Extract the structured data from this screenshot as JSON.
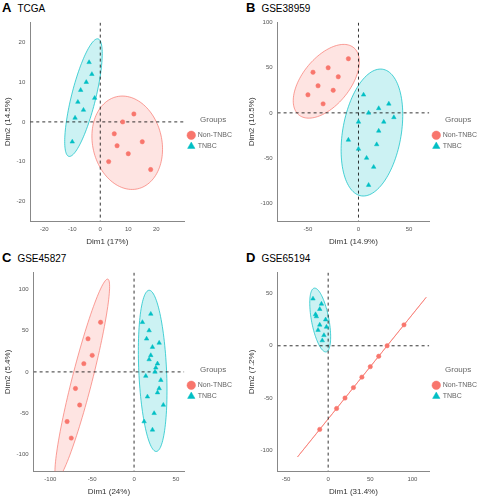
{
  "chart_data": [
    {
      "type": "scatter",
      "panel": "A",
      "title": "TCGA",
      "x_label": "Dim1 (17%)",
      "y_label": "Dim2 (14.5%)",
      "legend_title": "Groups",
      "legend": "right",
      "grid": false,
      "xlim": [
        -25,
        30
      ],
      "xticks": [
        -20,
        -10,
        0,
        10,
        20
      ],
      "ylim": [
        -25,
        25
      ],
      "yticks": [
        -20,
        -10,
        0,
        10,
        20
      ],
      "series": [
        {
          "name": "Non-TNBC",
          "color": "#F8766D",
          "marker": "circle",
          "x": [
            5,
            10,
            15,
            8,
            3,
            12,
            18,
            6
          ],
          "values": [
            -3,
            -8,
            -5,
            0,
            -10,
            2,
            -12,
            -6
          ]
        },
        {
          "name": "TNBC",
          "color": "#00BFC4",
          "marker": "triangle",
          "x": [
            -8,
            -5,
            -6,
            -3,
            -10,
            -2,
            -7,
            -4,
            -9
          ],
          "values": [
            5,
            10,
            3,
            12,
            -5,
            6,
            8,
            15,
            1
          ]
        }
      ]
    },
    {
      "type": "scatter",
      "panel": "B",
      "title": "GSE38959",
      "x_label": "Dim1 (14.9%)",
      "y_label": "Dim2 (10.5%)",
      "legend_title": "Groups",
      "legend": "right",
      "grid": false,
      "xlim": [
        -80,
        70
      ],
      "xticks": [
        -50,
        0,
        50
      ],
      "ylim": [
        -120,
        100
      ],
      "yticks": [
        -100,
        -50,
        0,
        50,
        100
      ],
      "series": [
        {
          "name": "Non-TNBC",
          "color": "#F8766D",
          "marker": "circle",
          "x": [
            -40,
            -30,
            -50,
            -20,
            -35,
            -10,
            -45,
            -25
          ],
          "values": [
            30,
            50,
            20,
            40,
            10,
            60,
            45,
            25
          ]
        },
        {
          "name": "TNBC",
          "color": "#00BFC4",
          "marker": "triangle",
          "x": [
            10,
            20,
            0,
            30,
            15,
            5,
            25,
            -10,
            35,
            20,
            10,
            0,
            18,
            8
          ],
          "values": [
            0,
            -20,
            -40,
            10,
            -60,
            20,
            -10,
            -30,
            -5,
            5,
            -80,
            -10,
            -35,
            -50
          ]
        }
      ]
    },
    {
      "type": "scatter",
      "panel": "C",
      "title": "GSE45827",
      "x_label": "Dim1 (24%)",
      "y_label": "Dim2 (5.4%)",
      "legend_title": "Groups",
      "legend": "right",
      "grid": false,
      "xlim": [
        -120,
        60
      ],
      "xticks": [
        -100,
        -50,
        0,
        50
      ],
      "ylim": [
        -120,
        120
      ],
      "yticks": [
        -100,
        -50,
        0,
        50,
        100
      ],
      "series": [
        {
          "name": "Non-TNBC",
          "color": "#F8766D",
          "marker": "circle",
          "x": [
            -80,
            -70,
            -60,
            -55,
            -50,
            -40,
            -65,
            -75
          ],
          "values": [
            -60,
            -20,
            10,
            40,
            20,
            60,
            -40,
            -80
          ]
        },
        {
          "name": "TNBC",
          "color": "#00BFC4",
          "marker": "triangle",
          "x": [
            10,
            15,
            20,
            25,
            30,
            35,
            12,
            18,
            22,
            28,
            32,
            16,
            24,
            20,
            26,
            14,
            30,
            22,
            18,
            28
          ],
          "values": [
            60,
            40,
            20,
            0,
            -20,
            -40,
            -60,
            50,
            30,
            10,
            -10,
            -30,
            -50,
            70,
            5,
            -5,
            35,
            -70,
            15,
            -25
          ]
        }
      ]
    },
    {
      "type": "scatter",
      "panel": "D",
      "title": "GSE65194",
      "x_label": "Dim1 (31.4%)",
      "y_label": "Dim2 (7.2%)",
      "legend_title": "Groups",
      "legend": "right",
      "grid": false,
      "xlim": [
        -60,
        120
      ],
      "xticks": [
        -50,
        0,
        50,
        100
      ],
      "ylim": [
        -120,
        70
      ],
      "yticks": [
        -100,
        -50,
        0,
        50
      ],
      "series": [
        {
          "name": "Non-TNBC",
          "color": "#F8766D",
          "marker": "circle",
          "x": [
            10,
            30,
            50,
            70,
            20,
            40,
            -10,
            60,
            90
          ],
          "values": [
            -60,
            -40,
            -20,
            0,
            -50,
            -30,
            -80,
            -10,
            20
          ]
        },
        {
          "name": "TNBC",
          "color": "#00BFC4",
          "marker": "triangle",
          "x": [
            -10,
            -15,
            -5,
            -8,
            -12,
            -3,
            -18,
            -7,
            -10,
            -2,
            -14
          ],
          "values": [
            20,
            30,
            10,
            40,
            15,
            25,
            45,
            5,
            35,
            18,
            28
          ]
        }
      ]
    }
  ]
}
